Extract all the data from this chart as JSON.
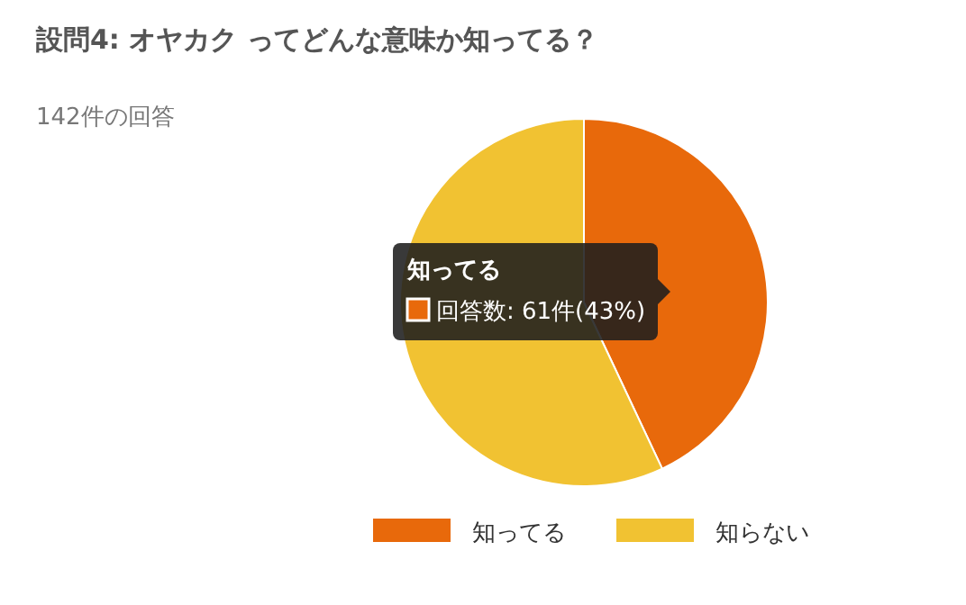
{
  "chart_data": {
    "type": "pie",
    "title": "設問4: オヤカク ってどんな意味か知ってる？",
    "subtitle": "142件の回答",
    "categories": [
      "知ってる",
      "知らない"
    ],
    "values": [
      43,
      57
    ],
    "colors": [
      "#e8690b",
      "#f1c232"
    ],
    "legend": "bottom",
    "annotations": [
      "知ってる",
      "回答数: 61件(43%)"
    ]
  }
}
